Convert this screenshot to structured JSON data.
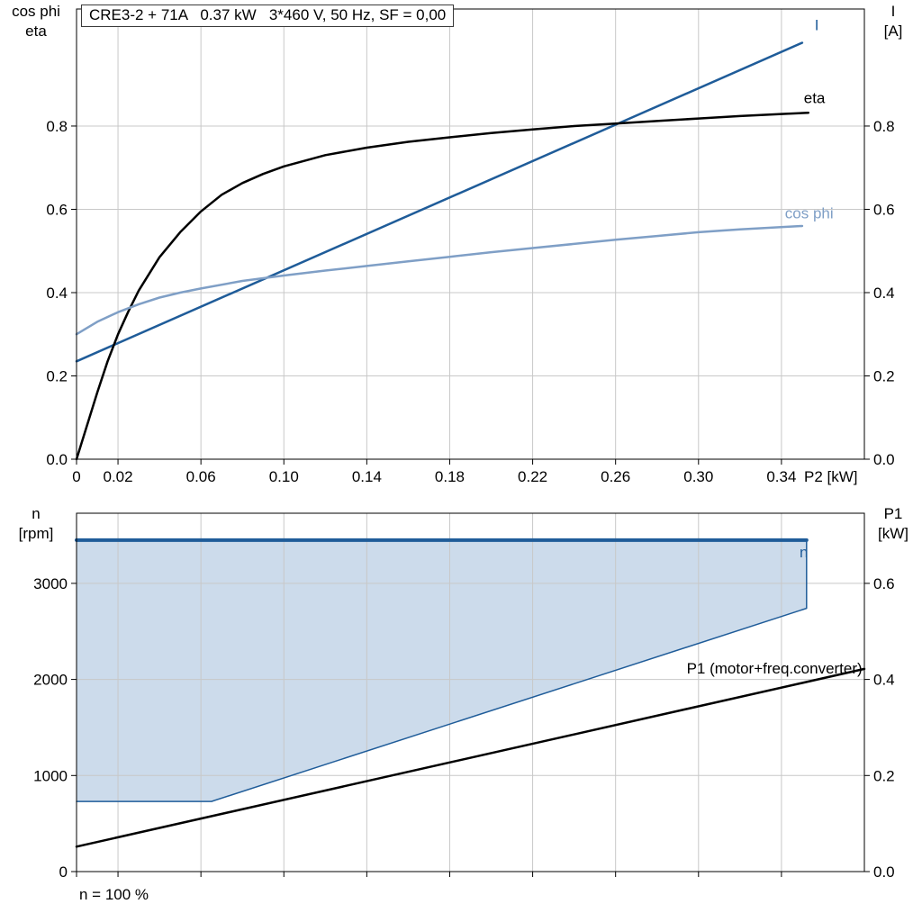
{
  "title_box": "CRE3-2 + 71A   0.37 kW   3*460 V, 50 Hz, SF = 0,00",
  "footer_note": "n = 100 %",
  "colors": {
    "dark_blue": "#1f5c99",
    "light_blue": "#7f9fc6",
    "fill_blue": "#ccdbeb",
    "grid": "#c8c8c8",
    "black": "#000000"
  },
  "axis_corner_labels": {
    "top_left_line1": "cos phi",
    "top_left_line2": "eta",
    "top_right_line1": "I",
    "top_right_line2": "[A]",
    "bottom_left_line1": "n",
    "bottom_left_line2": "[rpm]",
    "bottom_right_line1": "P1",
    "bottom_right_line2": "[kW]"
  },
  "chart_data": [
    {
      "type": "line",
      "title": "CRE3-2 + 71A   0.37 kW   3*460 V, 50 Hz, SF = 0,00",
      "xlabel": "P2 [kW]",
      "ylabel_left": "cos phi / eta",
      "ylabel_right": "I [A]",
      "xlim": [
        0,
        0.38
      ],
      "ylim": [
        0,
        1.081
      ],
      "grid": true,
      "x_ticks": [
        0,
        0.02,
        0.06,
        0.1,
        0.14,
        0.18,
        0.22,
        0.26,
        0.3,
        0.34
      ],
      "x_tick_labels": [
        "0",
        "0.02",
        "0.06",
        "0.10",
        "0.14",
        "0.18",
        "0.22",
        "0.26",
        "0.30",
        "0.34"
      ],
      "y_ticks": [
        0,
        0.2,
        0.4,
        0.6,
        0.8
      ],
      "y_tick_labels": [
        "0.0",
        "0.2",
        "0.4",
        "0.6",
        "0.8"
      ],
      "series": [
        {
          "name": "I",
          "color": "dark_blue",
          "width": 2.5,
          "points": [
            [
              0,
              0.235
            ],
            [
              0.35,
              1.0
            ]
          ]
        },
        {
          "name": "eta",
          "color": "black",
          "width": 2.5,
          "points": [
            [
              0,
              0
            ],
            [
              0.005,
              0.08
            ],
            [
              0.01,
              0.16
            ],
            [
              0.015,
              0.235
            ],
            [
              0.02,
              0.3
            ],
            [
              0.025,
              0.355
            ],
            [
              0.03,
              0.405
            ],
            [
              0.04,
              0.485
            ],
            [
              0.05,
              0.545
            ],
            [
              0.06,
              0.595
            ],
            [
              0.07,
              0.635
            ],
            [
              0.08,
              0.663
            ],
            [
              0.09,
              0.685
            ],
            [
              0.1,
              0.703
            ],
            [
              0.12,
              0.73
            ],
            [
              0.14,
              0.748
            ],
            [
              0.16,
              0.762
            ],
            [
              0.18,
              0.773
            ],
            [
              0.2,
              0.783
            ],
            [
              0.22,
              0.792
            ],
            [
              0.24,
              0.8
            ],
            [
              0.26,
              0.806
            ],
            [
              0.28,
              0.812
            ],
            [
              0.3,
              0.818
            ],
            [
              0.32,
              0.824
            ],
            [
              0.34,
              0.829
            ],
            [
              0.353,
              0.832
            ]
          ]
        },
        {
          "name": "cos phi",
          "color": "light_blue",
          "width": 2.5,
          "points": [
            [
              0,
              0.3
            ],
            [
              0.01,
              0.33
            ],
            [
              0.02,
              0.353
            ],
            [
              0.03,
              0.372
            ],
            [
              0.04,
              0.388
            ],
            [
              0.05,
              0.4
            ],
            [
              0.06,
              0.41
            ],
            [
              0.08,
              0.428
            ],
            [
              0.1,
              0.441
            ],
            [
              0.12,
              0.453
            ],
            [
              0.14,
              0.464
            ],
            [
              0.16,
              0.475
            ],
            [
              0.18,
              0.486
            ],
            [
              0.2,
              0.497
            ],
            [
              0.22,
              0.507
            ],
            [
              0.24,
              0.517
            ],
            [
              0.26,
              0.527
            ],
            [
              0.28,
              0.536
            ],
            [
              0.3,
              0.545
            ],
            [
              0.32,
              0.552
            ],
            [
              0.35,
              0.56
            ]
          ]
        }
      ],
      "curve_labels": [
        {
          "text": "I",
          "x": 0.356,
          "y": 1.03,
          "color": "dark_blue",
          "anchor": "start"
        },
        {
          "text": "eta",
          "x": 0.3508,
          "y": 0.855,
          "color": "black",
          "anchor": "start"
        },
        {
          "text": "cos phi",
          "x": 0.3417,
          "y": 0.578,
          "color": "light_blue",
          "anchor": "start"
        }
      ]
    },
    {
      "type": "area+line",
      "xlabel": "",
      "ylabel_left": "n [rpm]",
      "ylabel_right": "P1 [kW]",
      "xlim": [
        0,
        0.38
      ],
      "ylim_left": [
        0,
        3730
      ],
      "ylim_right": [
        0,
        0.746
      ],
      "grid": true,
      "x_ticks": [
        0,
        0.02,
        0.06,
        0.1,
        0.14,
        0.18,
        0.22,
        0.26,
        0.3,
        0.34
      ],
      "y_ticks_left": [
        0,
        1000,
        2000,
        3000
      ],
      "y_tick_labels_left": [
        "0",
        "1000",
        "2000",
        "3000"
      ],
      "y_ticks_right": [
        0,
        0.2,
        0.4,
        0.6
      ],
      "y_tick_labels_right": [
        "0.0",
        "0.2",
        "0.4",
        "0.6"
      ],
      "speed_envelope": {
        "axis": "left",
        "fill": "fill_blue",
        "edge": "dark_blue",
        "max_speed_rpm": 3450,
        "min_speed_rpm": 730,
        "points_x_rpm": [
          [
            0,
            3450
          ],
          [
            0.3521,
            3450
          ],
          [
            0.3521,
            2740
          ],
          [
            0.0651,
            730
          ],
          [
            0,
            730
          ]
        ]
      },
      "series": [
        {
          "name": "P1 (motor+freq.converter)",
          "axis": "right",
          "color": "black",
          "width": 2.5,
          "points": [
            [
              0,
              0.052
            ],
            [
              0.38,
              0.422
            ]
          ]
        }
      ],
      "curve_labels": [
        {
          "text": "n",
          "x": 0.3508,
          "y": 3270,
          "axis": "left",
          "color": "dark_blue",
          "anchor": "middle"
        },
        {
          "text": "P1 (motor+freq.converter)",
          "x": 0.379,
          "y": 0.412,
          "axis": "right",
          "color": "black",
          "anchor": "end"
        }
      ],
      "footnote": "n = 100 %"
    }
  ]
}
